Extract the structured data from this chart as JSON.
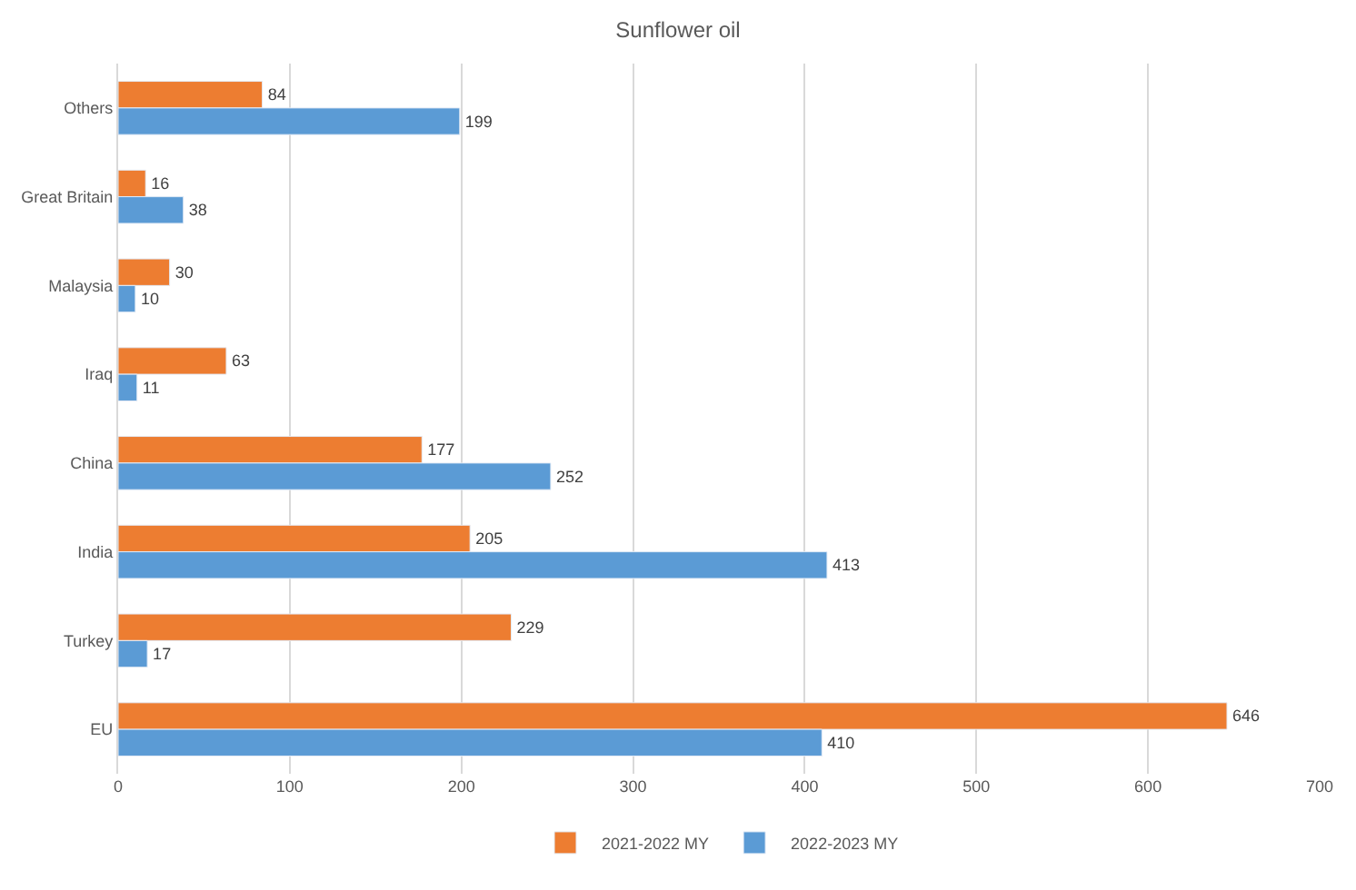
{
  "chart_data": {
    "type": "bar",
    "orientation": "horizontal",
    "title": "Sunflower oil",
    "categories": [
      "Others",
      "Great Britain",
      "Malaysia",
      "Iraq",
      "China",
      "India",
      "Turkey",
      "EU"
    ],
    "series": [
      {
        "name": "2021-2022 MY",
        "color": "#ed7d31",
        "values": [
          84,
          16,
          30,
          63,
          177,
          205,
          229,
          646
        ]
      },
      {
        "name": "2022-2023 MY",
        "color": "#5b9bd5",
        "values": [
          199,
          38,
          10,
          11,
          252,
          413,
          17,
          410
        ]
      }
    ],
    "xlim": [
      0,
      700
    ],
    "xticks": [
      0,
      100,
      200,
      300,
      400,
      500,
      600,
      700
    ],
    "grid": "x",
    "legend": "bottom",
    "data_labels": true
  }
}
